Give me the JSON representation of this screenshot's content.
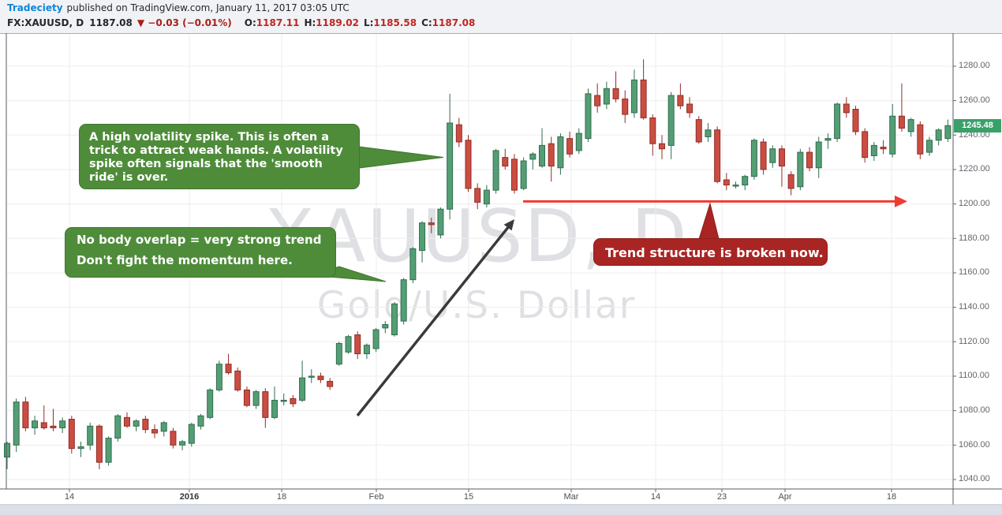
{
  "header": {
    "brand": "Tradeciety",
    "published": "published on TradingView.com, January 11, 2017 03:05 UTC",
    "symbol": "FX:XAUUSD, D",
    "last_price": "1187.08",
    "direction_icon": "▼",
    "change": "−0.03 (−0.01%)",
    "ohlc": [
      {
        "label": "O:",
        "value": "1187.11"
      },
      {
        "label": "H:",
        "value": "1189.02"
      },
      {
        "label": "L:",
        "value": "1185.58"
      },
      {
        "label": "C:",
        "value": "1187.08"
      }
    ],
    "colors": {
      "brand": "#0e86d4",
      "text": "#23272e",
      "value_red": "#c0251f",
      "change_red": "#a81f1a"
    }
  },
  "watermark": {
    "line1": "XAUUSD, D",
    "line2": "Gold/U.S. Dollar"
  },
  "annotations": {
    "spike_note": {
      "text": "A high volatility spike. This is often a trick to attract weak hands. A volatility spike often signals that the 'smooth ride' is over.",
      "bg": "#4e8c3a",
      "border": "#3f7530"
    },
    "momentum_note": {
      "line1": "No body overlap = very strong trend",
      "line2": "Don't fight the momentum here.",
      "bg": "#4e8c3a",
      "border": "#3f7530"
    },
    "broken_note": {
      "text": "Trend structure is broken now.",
      "bg": "#a82523",
      "border": "#8e1f1d"
    },
    "red_arrow_color": "#ef3b30",
    "black_arrow_color": "#3a3a3a"
  },
  "price_badge": {
    "label": "1245.48",
    "bg": "#3aa06a"
  },
  "y_axis": {
    "prices": [
      1280,
      1260,
      1240,
      1220,
      1200,
      1180,
      1160,
      1140,
      1120,
      1100,
      1080,
      1060,
      1040
    ]
  },
  "x_axis": {
    "ticks": [
      {
        "label": "14",
        "x": 88
      },
      {
        "label": "2016",
        "x": 240,
        "bold": true
      },
      {
        "label": "18",
        "x": 357
      },
      {
        "label": "Feb",
        "x": 477
      },
      {
        "label": "15",
        "x": 594
      },
      {
        "label": "Mar",
        "x": 724
      },
      {
        "label": "14",
        "x": 831
      },
      {
        "label": "23",
        "x": 915
      },
      {
        "label": "Apr",
        "x": 995
      },
      {
        "label": "18",
        "x": 1130
      }
    ]
  },
  "chart_data": {
    "type": "candlestick",
    "symbol": "XAUUSD",
    "timeframe": "D",
    "ylim": [
      1034.5,
      1299.2
    ],
    "grid": true,
    "up_color": "#559e75",
    "up_border": "#2f6d4d",
    "down_color": "#cb4d42",
    "down_border": "#912d26",
    "red_trend_line_price": 1201.5,
    "last_close": 1245.48,
    "candles": [
      [
        1053,
        1062,
        1046,
        1061
      ],
      [
        1060,
        1087,
        1056,
        1085
      ],
      [
        1085,
        1088,
        1068,
        1070
      ],
      [
        1070,
        1077,
        1066,
        1074
      ],
      [
        1073,
        1083,
        1069,
        1070
      ],
      [
        1071,
        1081,
        1068,
        1070
      ],
      [
        1070,
        1076,
        1067,
        1074
      ],
      [
        1075,
        1077,
        1055,
        1058
      ],
      [
        1058,
        1062,
        1053,
        1059
      ],
      [
        1060,
        1073,
        1057,
        1071
      ],
      [
        1071,
        1072,
        1046,
        1050
      ],
      [
        1050,
        1065,
        1048,
        1064
      ],
      [
        1064,
        1078,
        1062,
        1077
      ],
      [
        1076,
        1079,
        1070,
        1071
      ],
      [
        1071,
        1075,
        1068,
        1074
      ],
      [
        1075,
        1077,
        1067,
        1069
      ],
      [
        1069,
        1072,
        1064,
        1067
      ],
      [
        1068,
        1074,
        1065,
        1073
      ],
      [
        1068,
        1070,
        1058,
        1060
      ],
      [
        1060,
        1063,
        1057,
        1062
      ],
      [
        1061,
        1073,
        1059,
        1072
      ],
      [
        1071,
        1078,
        1069,
        1077
      ],
      [
        1076,
        1093,
        1075,
        1092
      ],
      [
        1092,
        1109,
        1091,
        1107
      ],
      [
        1107,
        1113,
        1101,
        1102
      ],
      [
        1103,
        1105,
        1091,
        1092
      ],
      [
        1092,
        1094,
        1082,
        1083
      ],
      [
        1083,
        1092,
        1081,
        1091
      ],
      [
        1091,
        1093,
        1070,
        1076
      ],
      [
        1076,
        1094,
        1075,
        1086
      ],
      [
        1086,
        1090,
        1083,
        1086
      ],
      [
        1087,
        1089,
        1082,
        1084
      ],
      [
        1086,
        1109,
        1085,
        1099
      ],
      [
        1100,
        1104,
        1096,
        1100
      ],
      [
        1100,
        1102,
        1096,
        1098
      ],
      [
        1097,
        1099,
        1092,
        1094
      ],
      [
        1107,
        1120,
        1106,
        1119
      ],
      [
        1114,
        1124,
        1113,
        1123
      ],
      [
        1124,
        1126,
        1110,
        1113
      ],
      [
        1113,
        1119,
        1110,
        1118
      ],
      [
        1116,
        1128,
        1114,
        1127
      ],
      [
        1128,
        1132,
        1125,
        1130
      ],
      [
        1124,
        1143,
        1123,
        1142
      ],
      [
        1132,
        1157,
        1130,
        1156
      ],
      [
        1156,
        1175,
        1154,
        1174
      ],
      [
        1173,
        1190,
        1166,
        1189
      ],
      [
        1189,
        1192,
        1183,
        1188
      ],
      [
        1182,
        1198,
        1180,
        1197
      ],
      [
        1197,
        1264,
        1191,
        1247
      ],
      [
        1246,
        1250,
        1233,
        1236
      ],
      [
        1237,
        1240,
        1207,
        1209
      ],
      [
        1209,
        1212,
        1197,
        1201
      ],
      [
        1200,
        1211,
        1198,
        1208
      ],
      [
        1208,
        1232,
        1206,
        1231
      ],
      [
        1227,
        1232,
        1220,
        1222
      ],
      [
        1226,
        1229,
        1206,
        1208
      ],
      [
        1209,
        1227,
        1208,
        1225
      ],
      [
        1226,
        1230,
        1220,
        1229
      ],
      [
        1222,
        1244,
        1221,
        1234
      ],
      [
        1235,
        1239,
        1213,
        1222
      ],
      [
        1221,
        1241,
        1217,
        1239
      ],
      [
        1238,
        1242,
        1227,
        1229
      ],
      [
        1231,
        1244,
        1229,
        1241
      ],
      [
        1238,
        1267,
        1236,
        1264
      ],
      [
        1263,
        1270,
        1253,
        1257
      ],
      [
        1258,
        1271,
        1255,
        1267
      ],
      [
        1267,
        1277,
        1259,
        1261
      ],
      [
        1261,
        1266,
        1247,
        1252
      ],
      [
        1253,
        1278,
        1250,
        1272
      ],
      [
        1272,
        1284,
        1249,
        1250
      ],
      [
        1250,
        1252,
        1228,
        1235
      ],
      [
        1235,
        1240,
        1226,
        1232
      ],
      [
        1234,
        1265,
        1226,
        1263
      ],
      [
        1263,
        1270,
        1255,
        1257
      ],
      [
        1258,
        1262,
        1250,
        1253
      ],
      [
        1249,
        1251,
        1235,
        1236
      ],
      [
        1239,
        1247,
        1236,
        1243
      ],
      [
        1243,
        1245,
        1212,
        1213
      ],
      [
        1214,
        1218,
        1208,
        1211
      ],
      [
        1211,
        1213,
        1209,
        1211
      ],
      [
        1211,
        1217,
        1208,
        1216
      ],
      [
        1216,
        1238,
        1214,
        1237
      ],
      [
        1236,
        1238,
        1217,
        1220
      ],
      [
        1224,
        1234,
        1221,
        1232
      ],
      [
        1232,
        1234,
        1210,
        1222
      ],
      [
        1217,
        1219,
        1205,
        1209
      ],
      [
        1210,
        1232,
        1208,
        1230
      ],
      [
        1230,
        1233,
        1219,
        1221
      ],
      [
        1221,
        1239,
        1215,
        1236
      ],
      [
        1237,
        1241,
        1232,
        1238
      ],
      [
        1238,
        1259,
        1236,
        1258
      ],
      [
        1258,
        1262,
        1250,
        1253
      ],
      [
        1255,
        1257,
        1240,
        1242
      ],
      [
        1242,
        1244,
        1224,
        1227
      ],
      [
        1228,
        1236,
        1225,
        1234
      ],
      [
        1233,
        1237,
        1229,
        1232
      ],
      [
        1229,
        1258,
        1227,
        1251
      ],
      [
        1251,
        1270,
        1242,
        1244
      ],
      [
        1242,
        1250,
        1239,
        1249
      ],
      [
        1246,
        1248,
        1226,
        1229
      ],
      [
        1230,
        1239,
        1228,
        1237
      ],
      [
        1237,
        1244,
        1234,
        1243
      ],
      [
        1238,
        1249,
        1236,
        1245.48
      ]
    ]
  }
}
